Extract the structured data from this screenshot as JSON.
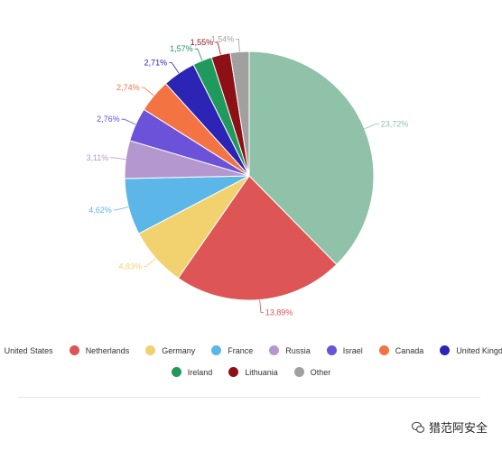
{
  "chart_data": {
    "type": "pie",
    "legend_position": "bottom",
    "slices": [
      {
        "name": "United States",
        "value": 23.72,
        "label": "23,72%",
        "color": "#8fc2a8"
      },
      {
        "name": "Netherlands",
        "value": 13.89,
        "label": "13,89%",
        "color": "#de5556"
      },
      {
        "name": "Germany",
        "value": 4.83,
        "label": "4,83%",
        "color": "#f1d26f"
      },
      {
        "name": "France",
        "value": 4.62,
        "label": "4,62%",
        "color": "#5cb6e8"
      },
      {
        "name": "Russia",
        "value": 3.11,
        "label": "3,11%",
        "color": "#b497cf"
      },
      {
        "name": "Israel",
        "value": 2.76,
        "label": "2,76%",
        "color": "#6b52d8"
      },
      {
        "name": "Canada",
        "value": 2.74,
        "label": "2,74%",
        "color": "#f47342"
      },
      {
        "name": "United Kingdom",
        "value": 2.71,
        "label": "2,71%",
        "color": "#2b24b5"
      },
      {
        "name": "Ireland",
        "value": 1.57,
        "label": "1,57%",
        "color": "#1f9a5c"
      },
      {
        "name": "Lithuania",
        "value": 1.55,
        "label": "1,55%",
        "color": "#8c1016"
      },
      {
        "name": "Other",
        "value": 1.54,
        "label": "1,54%",
        "color": "#a0a0a0"
      }
    ]
  },
  "watermark": {
    "text": "猎范阿安全",
    "icon": "wechat-icon"
  }
}
